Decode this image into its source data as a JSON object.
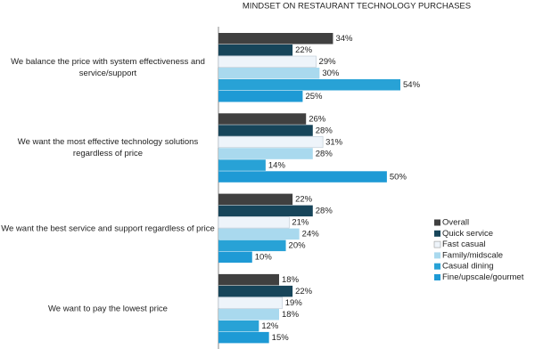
{
  "chart_data": {
    "type": "bar",
    "orientation": "horizontal",
    "title": "MINDSET ON RESTAURANT TECHNOLOGY PURCHASES",
    "categories": [
      "We balance the price with system effectiveness and service/support",
      "We want the most effective technology solutions regardless of price",
      "We want the best service and support regardless of price",
      "We want to pay the lowest price"
    ],
    "xlim": [
      0,
      90
    ],
    "series": [
      {
        "name": "Overall",
        "color": "#404040",
        "values": [
          34,
          26,
          22,
          18
        ],
        "value_labels": [
          "34%",
          "26%",
          "22%",
          "18%"
        ]
      },
      {
        "name": "Quick service",
        "color": "#17455a",
        "values": [
          22,
          28,
          28,
          22
        ],
        "value_labels": [
          "22%",
          "28%",
          "28%",
          "22%"
        ]
      },
      {
        "name": "Fast casual",
        "color": "#eef4fa",
        "values": [
          29,
          31,
          21,
          19
        ],
        "value_labels": [
          "29%",
          "31%",
          "21%",
          "19%"
        ]
      },
      {
        "name": "Family/midscale",
        "color": "#a9d9ee",
        "values": [
          30,
          28,
          24,
          18
        ],
        "value_labels": [
          "30%",
          "28%",
          "24%",
          "18%"
        ]
      },
      {
        "name": "Casual dining",
        "color": "#28a2d6",
        "values": [
          54,
          14,
          20,
          12
        ],
        "value_labels": [
          "54%",
          "14%",
          "20%",
          "12%"
        ]
      },
      {
        "name": "Fine/upscale/gourmet",
        "color": "#1e9ad5",
        "values": [
          25,
          50,
          10,
          15
        ],
        "value_labels": [
          "25%",
          "50%",
          "10%",
          "15%"
        ]
      }
    ],
    "legend": "right"
  }
}
